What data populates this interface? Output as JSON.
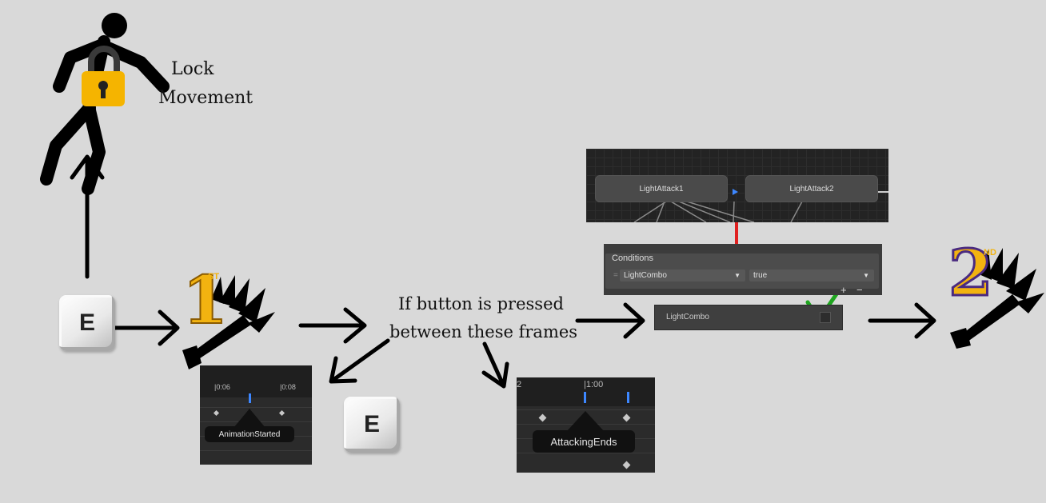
{
  "lock_label_line1": "Lock",
  "lock_label_line2": "Movement",
  "key_e": "E",
  "first_badge": {
    "digit": "1",
    "suffix": "ST"
  },
  "second_badge": {
    "digit": "2",
    "suffix": "ND"
  },
  "timeline1": {
    "tick_a": "|0:06",
    "tick_b": "|0:08",
    "tooltip": "AnimationStarted"
  },
  "timeline2": {
    "tick_a": "2",
    "tick_b": "|1:00",
    "tooltip": "AttackingEnds"
  },
  "condition_text_line1": "If button is pressed",
  "condition_text_line2": "between these frames",
  "animator": {
    "state1": "LightAttack1",
    "state2": "LightAttack2"
  },
  "conditions": {
    "header": "Conditions",
    "param": "LightCombo",
    "value": "true",
    "plus": "+",
    "minus": "−"
  },
  "param_row": "LightCombo",
  "colors": {
    "gold": "#f5b400",
    "arrow_red": "#e02020",
    "check_green": "#22aa22",
    "marker_blue": "#3d87ff"
  },
  "icons": [
    "stick-figure-icon",
    "padlock-icon",
    "sword-slash-icon",
    "checkmark-icon"
  ]
}
